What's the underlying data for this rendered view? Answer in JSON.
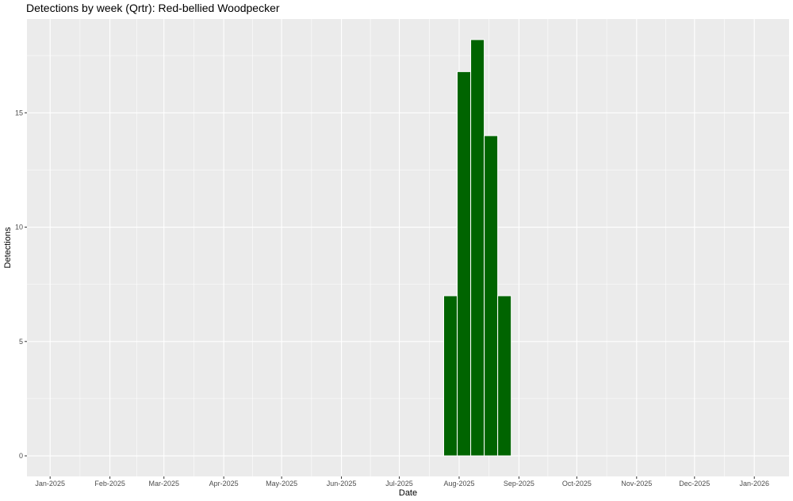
{
  "chart_data": {
    "type": "bar",
    "title": "Detections by week (Qrtr): Red-bellied Woodpecker",
    "xlabel": "Date",
    "ylabel": "Detections",
    "x_axis": {
      "ticks": [
        "2025-01-01",
        "2025-02-01",
        "2025-03-01",
        "2025-04-01",
        "2025-05-01",
        "2025-06-01",
        "2025-07-01",
        "2025-08-01",
        "2025-09-01",
        "2025-10-01",
        "2025-11-01",
        "2025-12-01",
        "2026-01-01"
      ],
      "tick_labels": [
        "Jan-2025",
        "Feb-2025",
        "Mar-2025",
        "Apr-2025",
        "May-2025",
        "Jun-2025",
        "Jul-2025",
        "Aug-2025",
        "Sep-2025",
        "Oct-2025",
        "Nov-2025",
        "Dec-2025",
        "Jan-2026"
      ],
      "range": [
        "2024-12-20",
        "2026-01-19"
      ]
    },
    "y_axis": {
      "ticks": [
        0,
        5,
        10,
        15
      ],
      "range": [
        -0.9,
        19.1
      ]
    },
    "grid": true,
    "colors": {
      "bar_fill": "#006400",
      "bar_stroke": "#ffffff",
      "panel_background": "#ebebeb",
      "grid_line": "#ffffff"
    },
    "series": [
      {
        "x": [
          "2025-07-24",
          "2025-07-31",
          "2025-08-07",
          "2025-08-14",
          "2025-08-21"
        ],
        "values": [
          7,
          16.8,
          18.2,
          14,
          7
        ]
      }
    ]
  }
}
